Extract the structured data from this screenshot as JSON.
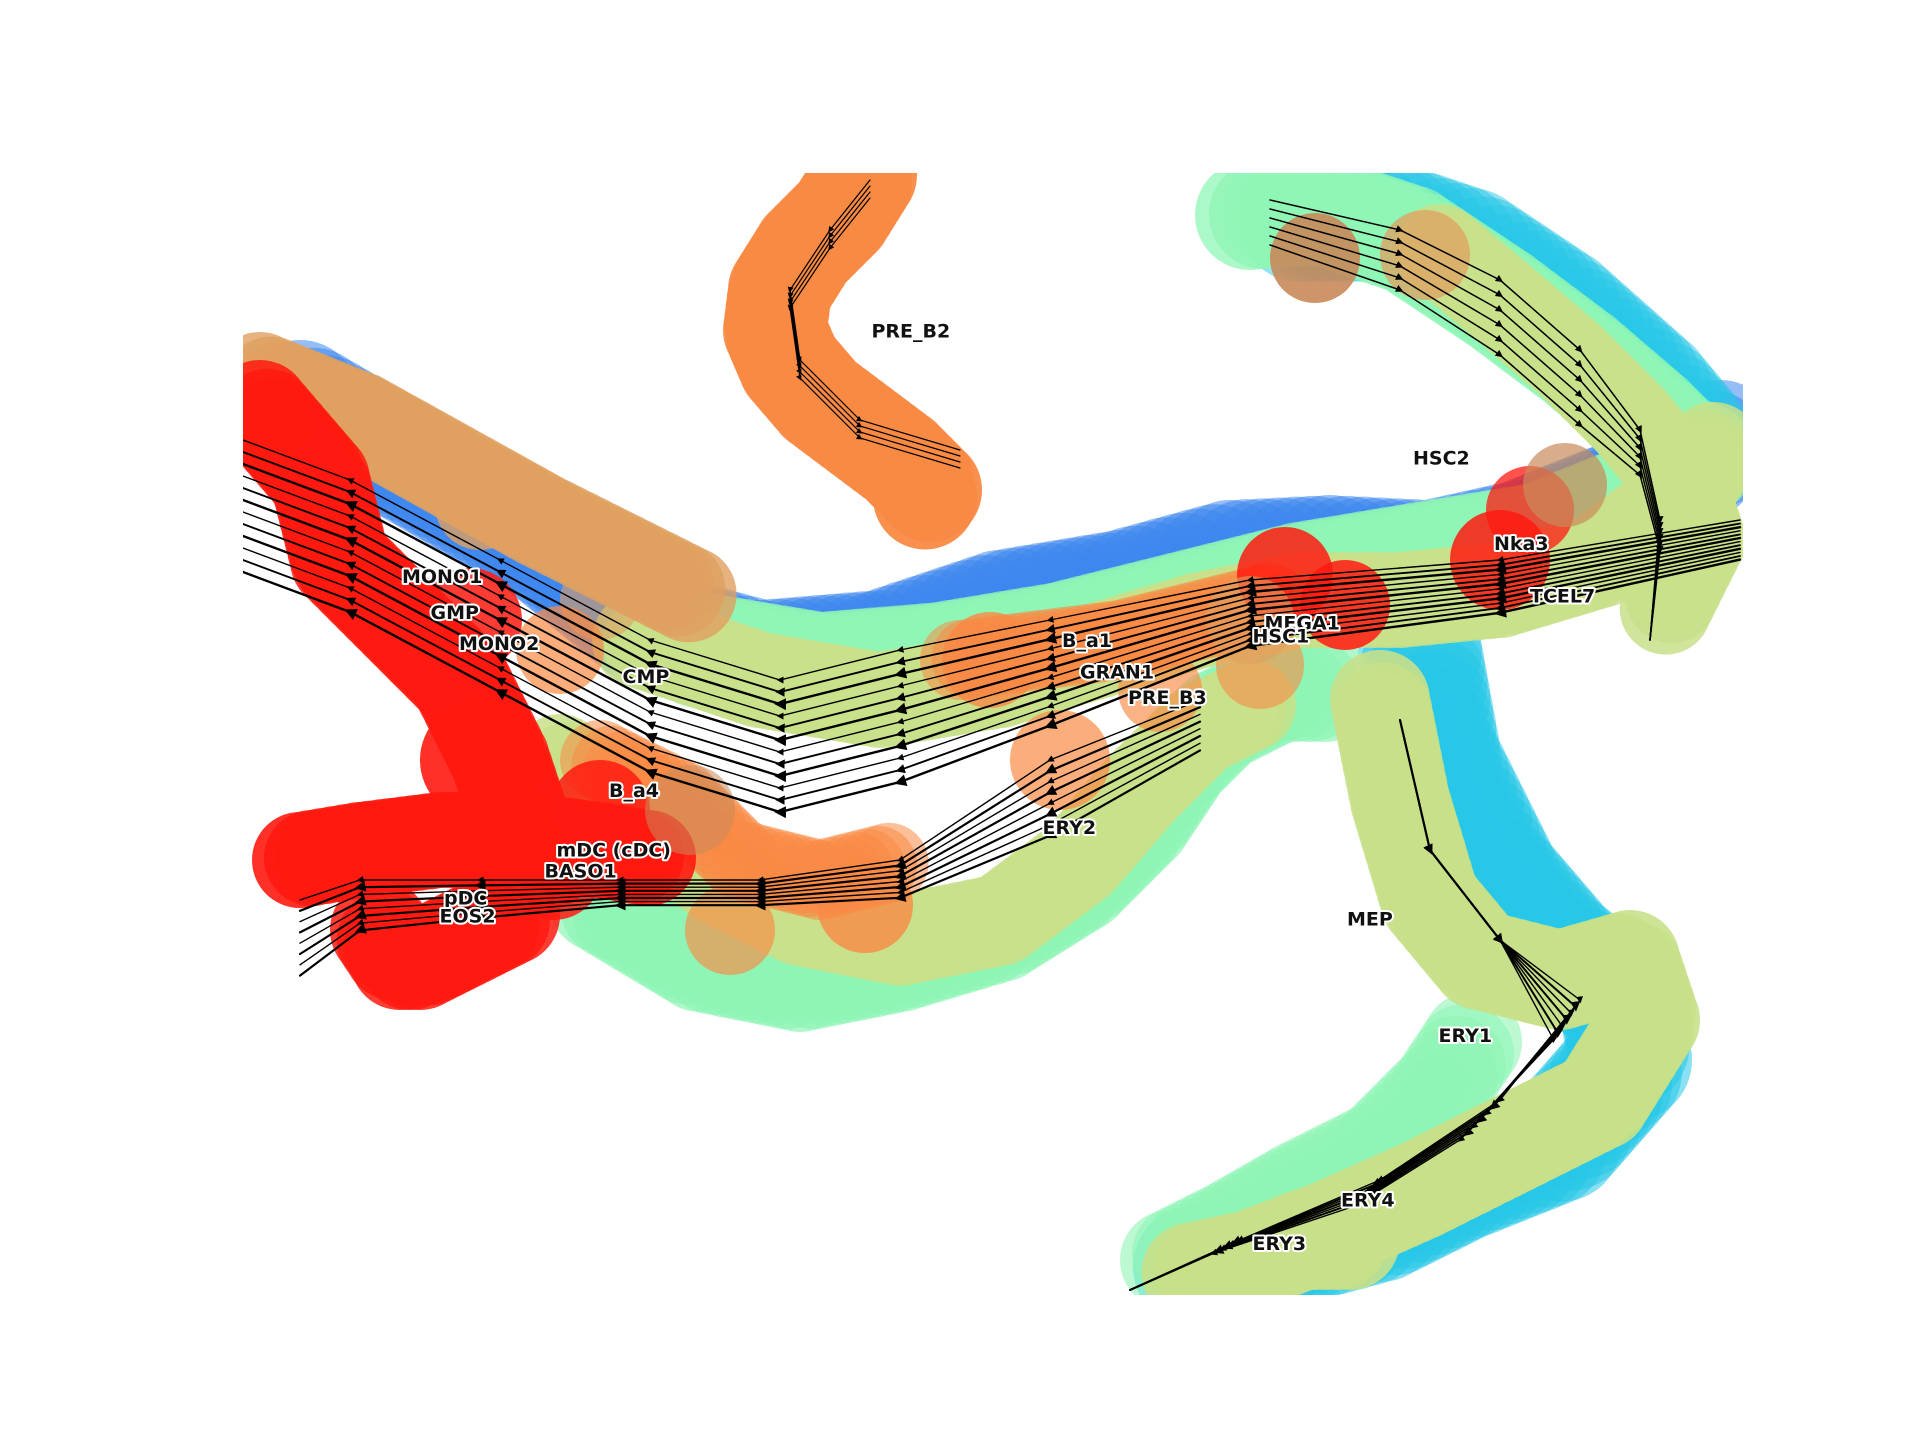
{
  "chart_data": {
    "type": "scatter",
    "title": "",
    "xlabel": "",
    "ylabel": "",
    "xlim": [
      0,
      100
    ],
    "ylim": [
      0,
      75
    ],
    "grid": false,
    "axes_visible": false,
    "overlay": "velocity streamlines with arrowheads",
    "colormap": "rainbow",
    "colors": {
      "red": "#ff1a10",
      "orange": "#f98a45",
      "tan": "#e0a060",
      "yellow_green": "#c8e08a",
      "mint": "#8ff5b5",
      "cyan": "#27c7e8",
      "blue": "#3e86ee",
      "brown": "#c98a5a"
    },
    "labels": [
      {
        "text": "PRE_B2",
        "x": 41.9,
        "y": 64.0
      },
      {
        "text": "HSC2",
        "x": 78.0,
        "y": 55.5
      },
      {
        "text": "Nka3",
        "x": 83.4,
        "y": 49.8
      },
      {
        "text": "TCEL7",
        "x": 85.8,
        "y": 46.3
      },
      {
        "text": "MEGA1",
        "x": 68.1,
        "y": 44.5
      },
      {
        "text": "HSC1",
        "x": 67.3,
        "y": 43.6
      },
      {
        "text": "MONO1",
        "x": 10.6,
        "y": 47.6
      },
      {
        "text": "GMP",
        "x": 12.5,
        "y": 45.2
      },
      {
        "text": "MONO2",
        "x": 14.4,
        "y": 43.1
      },
      {
        "text": "CMP",
        "x": 25.3,
        "y": 40.9
      },
      {
        "text": "B_a1",
        "x": 54.6,
        "y": 43.3
      },
      {
        "text": "GRAN1",
        "x": 55.8,
        "y": 41.2
      },
      {
        "text": "PRE_B3",
        "x": 59.0,
        "y": 39.5
      },
      {
        "text": "B_a4",
        "x": 24.4,
        "y": 33.3
      },
      {
        "text": "ERY2",
        "x": 53.3,
        "y": 30.8
      },
      {
        "text": "mDC (cDC)",
        "x": 20.9,
        "y": 29.3
      },
      {
        "text": "BASO1",
        "x": 20.1,
        "y": 27.9
      },
      {
        "text": "pDC",
        "x": 13.4,
        "y": 26.1
      },
      {
        "text": "EOS2",
        "x": 13.1,
        "y": 24.9
      },
      {
        "text": "MEP",
        "x": 73.6,
        "y": 24.7
      },
      {
        "text": "ERY1",
        "x": 79.7,
        "y": 16.9
      },
      {
        "text": "ERY4",
        "x": 73.2,
        "y": 5.9
      },
      {
        "text": "ERY3",
        "x": 67.3,
        "y": 3.0
      }
    ]
  }
}
